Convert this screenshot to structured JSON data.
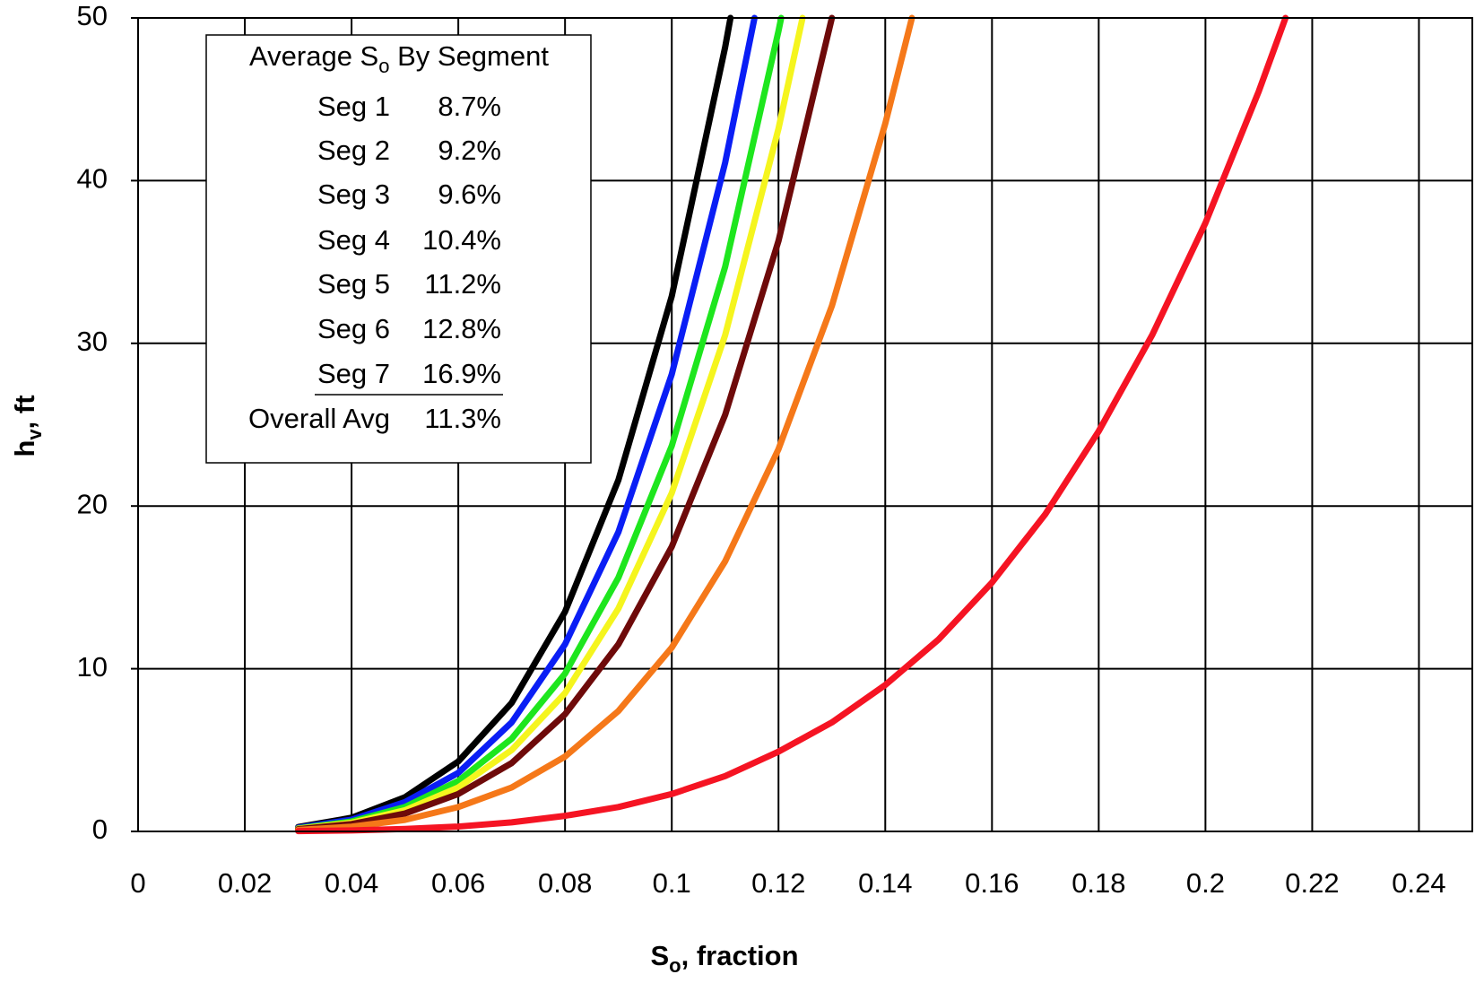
{
  "chart_data": {
    "type": "line",
    "x_label": {
      "main": "S",
      "sub": "o",
      "rest": ", fraction"
    },
    "y_label": {
      "main": "h",
      "sub": "v",
      "rest": ", ft"
    },
    "xlim": [
      0,
      0.25
    ],
    "ylim": [
      0,
      50
    ],
    "xticks": [
      0,
      0.02,
      0.04,
      0.06,
      0.08,
      0.1,
      0.12,
      0.14,
      0.16,
      0.18,
      0.2,
      0.22,
      0.24
    ],
    "yticks": [
      0,
      10,
      20,
      30,
      40,
      50
    ],
    "grid": true,
    "series": [
      {
        "color": "#000000",
        "x": [
          0.03,
          0.04,
          0.05,
          0.06,
          0.07,
          0.08,
          0.09,
          0.1,
          0.11,
          0.111
        ],
        "values": [
          0.27,
          0.84,
          2.1,
          4.3,
          7.9,
          13.5,
          21.6,
          32.9,
          48.2,
          50
        ]
      },
      {
        "color": "#0a1ef5",
        "x": [
          0.03,
          0.04,
          0.05,
          0.06,
          0.07,
          0.08,
          0.09,
          0.1,
          0.11,
          0.1155
        ],
        "values": [
          0.23,
          0.72,
          1.8,
          3.6,
          6.7,
          11.5,
          18.4,
          28.1,
          41.1,
          50
        ]
      },
      {
        "color": "#1ee61e",
        "x": [
          0.03,
          0.04,
          0.05,
          0.06,
          0.07,
          0.08,
          0.09,
          0.1,
          0.11,
          0.12,
          0.1205
        ],
        "values": [
          0.19,
          0.61,
          1.5,
          3.1,
          5.7,
          9.7,
          15.6,
          23.7,
          34.7,
          49.2,
          50
        ]
      },
      {
        "color": "#f5f51e",
        "x": [
          0.03,
          0.04,
          0.05,
          0.06,
          0.07,
          0.08,
          0.09,
          0.1,
          0.11,
          0.12,
          0.1245
        ],
        "values": [
          0.17,
          0.53,
          1.3,
          2.7,
          5.0,
          8.5,
          13.7,
          20.8,
          30.5,
          43.2,
          50
        ]
      },
      {
        "color": "#6e0a0a",
        "x": [
          0.03,
          0.04,
          0.05,
          0.06,
          0.07,
          0.08,
          0.09,
          0.1,
          0.11,
          0.12,
          0.13
        ],
        "values": [
          0.14,
          0.45,
          1.1,
          2.3,
          4.2,
          7.2,
          11.5,
          17.5,
          25.6,
          36.3,
          50
        ]
      },
      {
        "color": "#f57819",
        "x": [
          0.03,
          0.04,
          0.05,
          0.06,
          0.07,
          0.08,
          0.09,
          0.1,
          0.11,
          0.12,
          0.13,
          0.14,
          0.145
        ],
        "values": [
          0.09,
          0.29,
          0.71,
          1.5,
          2.7,
          4.6,
          7.4,
          11.3,
          16.6,
          23.5,
          32.3,
          43.5,
          50
        ]
      },
      {
        "color": "#f51423",
        "x": [
          0.03,
          0.04,
          0.05,
          0.06,
          0.07,
          0.08,
          0.09,
          0.1,
          0.11,
          0.12,
          0.13,
          0.14,
          0.15,
          0.16,
          0.17,
          0.18,
          0.19,
          0.2,
          0.21,
          0.215
        ],
        "values": [
          0.02,
          0.06,
          0.15,
          0.3,
          0.56,
          0.96,
          1.5,
          2.3,
          3.4,
          4.9,
          6.7,
          9.0,
          11.8,
          15.3,
          19.5,
          24.6,
          30.5,
          37.4,
          45.5,
          50
        ]
      }
    ],
    "annotation_box": {
      "title": {
        "main": "Average S",
        "sub": "o",
        "rest": " By Segment"
      },
      "rows": [
        [
          "Seg 1",
          "8.7%"
        ],
        [
          "Seg 2",
          "9.2%"
        ],
        [
          "Seg 3",
          "9.6%"
        ],
        [
          "Seg 4",
          "10.4%"
        ],
        [
          "Seg 5",
          "11.2%"
        ],
        [
          "Seg 6",
          "12.8%"
        ],
        [
          "Seg 7",
          "16.9%"
        ]
      ],
      "total": [
        "Overall Avg",
        "11.3%"
      ]
    }
  }
}
